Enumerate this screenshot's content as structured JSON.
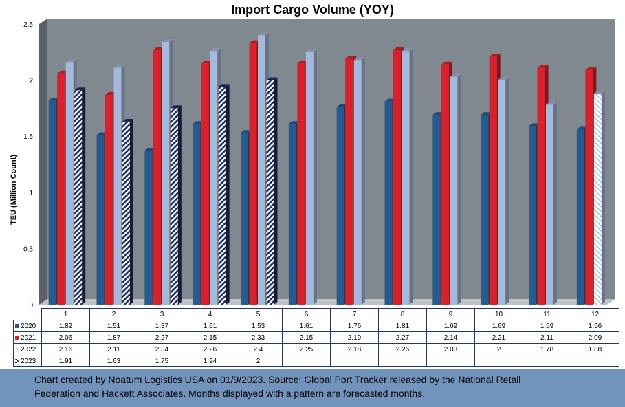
{
  "chart_data": {
    "type": "bar",
    "title": "Import Cargo Volume (YOY)",
    "ylabel": "TEU (Million Count)",
    "xlabel": "",
    "ylim": [
      0,
      2.5
    ],
    "yticks": [
      "0",
      "0.5",
      "1",
      "1.5",
      "2",
      "2.5"
    ],
    "categories": [
      "1",
      "2",
      "3",
      "4",
      "5",
      "6",
      "7",
      "8",
      "9",
      "10",
      "11",
      "12"
    ],
    "legend_position": "data-table",
    "grid": false,
    "series": [
      {
        "name": "2020",
        "color": "#2a5a8c",
        "pattern": "solid",
        "values": [
          1.82,
          1.51,
          1.37,
          1.61,
          1.53,
          1.61,
          1.76,
          1.81,
          1.69,
          1.69,
          1.59,
          1.56
        ]
      },
      {
        "name": "2021",
        "color": "#d7222d",
        "pattern": "solid",
        "values": [
          2.06,
          1.87,
          2.27,
          2.15,
          2.33,
          2.15,
          2.19,
          2.27,
          2.14,
          2.21,
          2.11,
          2.09
        ]
      },
      {
        "name": "2022",
        "color": "#a6b9da",
        "pattern": "solid",
        "forecast_categories": [
          "12"
        ],
        "values": [
          2.16,
          2.11,
          2.34,
          2.26,
          2.4,
          2.25,
          2.18,
          2.26,
          2.03,
          2,
          1.78,
          1.88
        ]
      },
      {
        "name": "2023",
        "color": "#1f2f5c",
        "pattern": "stripes",
        "values": [
          1.91,
          1.63,
          1.75,
          1.94,
          2,
          null,
          null,
          null,
          null,
          null,
          null,
          null
        ]
      }
    ]
  },
  "table_values": [
    [
      "1.82",
      "1.51",
      "1.37",
      "1.61",
      "1.53",
      "1.61",
      "1.76",
      "1.81",
      "1.69",
      "1.69",
      "1.59",
      "1.56"
    ],
    [
      "2.06",
      "1.87",
      "2.27",
      "2.15",
      "2.33",
      "2.15",
      "2.19",
      "2.27",
      "2.14",
      "2.21",
      "2.11",
      "2.09"
    ],
    [
      "2.16",
      "2.11",
      "2.34",
      "2.26",
      "2.4",
      "2.25",
      "2.18",
      "2.26",
      "2.03",
      "2",
      "1.78",
      "1.88"
    ],
    [
      "1.91",
      "1.63",
      "1.75",
      "1.94",
      "2",
      "",
      "",
      "",
      "",
      "",
      "",
      ""
    ]
  ],
  "footer": {
    "line1": "Chart created by Noatum Logistics USA on 01/9/2023. Source: Global Port Tracker released by the National Retail",
    "line2": "Federation and Hackett Associates. Months displayed with a pattern are forecasted months."
  },
  "colors": {
    "plot_back": "#808890",
    "plot_side": "#5c6167",
    "plot_floor": "#bfc3c7",
    "footer_bg": "#7294bc",
    "table_border": "#1f3864"
  }
}
